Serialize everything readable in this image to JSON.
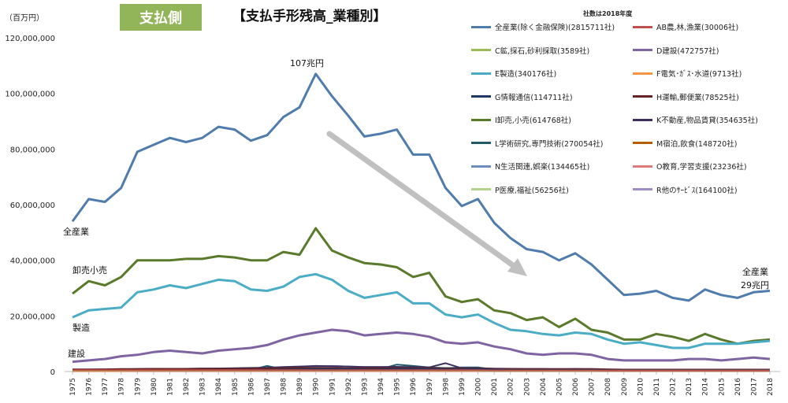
{
  "header": {
    "badge": "支払側",
    "title": "【支払手形残高_業種別】",
    "unit": "（百万円）",
    "legend_note": "社数は2018年度"
  },
  "annotations": {
    "peak": "107兆円",
    "all_industry_left": "全産業",
    "wholesale_left": "卸売小売",
    "manufacturing_left": "製造",
    "construction_left": "建設",
    "all_industry_right_1": "全産業",
    "all_industry_right_2": "29兆円"
  },
  "colors": {
    "all": "#4f7cac",
    "agri": "#c0504d",
    "mining": "#9bbb59",
    "construction": "#8064a2",
    "manufacturing": "#4bacc6",
    "utility": "#f79646",
    "it": "#1f3864",
    "transport": "#632523",
    "wholesale": "#5a7a2b",
    "realestate": "#3f2f5f",
    "research": "#215b6b",
    "hotel": "#b45f06",
    "life": "#6c8ebf",
    "education": "#e07b7b",
    "medical": "#b3d28a",
    "other_service": "#a08cc8",
    "arrow": "#c0c0c0",
    "axis": "#bfbfbf"
  },
  "chart_data": {
    "type": "line",
    "x": [
      "1975",
      "1976",
      "1977",
      "1978",
      "1979",
      "1980",
      "1981",
      "1982",
      "1983",
      "1984",
      "1985",
      "1986",
      "1987",
      "1988",
      "1989",
      "1990",
      "1991",
      "1992",
      "1993",
      "1994",
      "1995",
      "1996",
      "1997",
      "1998",
      "1999",
      "2000",
      "2001",
      "2002",
      "2003",
      "2004",
      "2005",
      "2006",
      "2007",
      "2008",
      "2009",
      "2010",
      "2011",
      "2012",
      "2013",
      "2014",
      "2015",
      "2016",
      "2017",
      "2018"
    ],
    "y_ticks": [
      "0",
      "20,000,000",
      "40,000,000",
      "60,000,000",
      "80,000,000",
      "100,000,000",
      "120,000,000"
    ],
    "ylim": [
      0,
      120000000
    ],
    "series": [
      {
        "name": "全産業(除く金融保険)(2815711社)",
        "color_key": "all",
        "values": [
          54000000,
          62000000,
          61000000,
          66000000,
          79000000,
          81500000,
          84000000,
          82500000,
          84000000,
          88000000,
          87000000,
          83000000,
          85000000,
          91500000,
          95000000,
          107000000,
          99000000,
          92000000,
          84500000,
          85500000,
          87000000,
          78000000,
          78000000,
          66000000,
          59500000,
          62000000,
          53500000,
          48000000,
          44000000,
          43000000,
          40000000,
          42500000,
          38500000,
          33000000,
          27500000,
          28000000,
          29000000,
          26500000,
          25500000,
          29500000,
          27500000,
          26500000,
          28500000,
          29000000
        ]
      },
      {
        "name": "AB農,林,漁業(30006社)",
        "color_key": "agri",
        "values": [
          500000,
          500000,
          500000,
          500000,
          500000,
          500000,
          500000,
          500000,
          500000,
          500000,
          500000,
          500000,
          500000,
          500000,
          500000,
          500000,
          500000,
          500000,
          500000,
          500000,
          500000,
          500000,
          500000,
          500000,
          500000,
          500000,
          400000,
          400000,
          400000,
          400000,
          400000,
          400000,
          400000,
          300000,
          300000,
          300000,
          300000,
          300000,
          300000,
          300000,
          300000,
          300000,
          300000,
          300000
        ]
      },
      {
        "name": "C鉱,採石,砂利採取(3589社)",
        "color_key": "mining",
        "values": [
          300000,
          300000,
          300000,
          300000,
          300000,
          300000,
          300000,
          300000,
          300000,
          300000,
          300000,
          300000,
          300000,
          300000,
          300000,
          300000,
          300000,
          300000,
          300000,
          300000,
          300000,
          300000,
          300000,
          300000,
          300000,
          300000,
          200000,
          200000,
          200000,
          200000,
          200000,
          200000,
          200000,
          200000,
          200000,
          200000,
          200000,
          200000,
          200000,
          200000,
          200000,
          200000,
          200000,
          200000
        ]
      },
      {
        "name": "D建設(472757社)",
        "color_key": "construction",
        "values": [
          3500000,
          4000000,
          4500000,
          5500000,
          6000000,
          7000000,
          7500000,
          7000000,
          6500000,
          7500000,
          8000000,
          8500000,
          9500000,
          11500000,
          13000000,
          14000000,
          15000000,
          14500000,
          13000000,
          13500000,
          14000000,
          13500000,
          12500000,
          10500000,
          10000000,
          10500000,
          9000000,
          8000000,
          6500000,
          6000000,
          6500000,
          6500000,
          6000000,
          4500000,
          4000000,
          4000000,
          4000000,
          4000000,
          4500000,
          4500000,
          4000000,
          4500000,
          5000000,
          4500000
        ]
      },
      {
        "name": "E製造(340176社)",
        "color_key": "manufacturing",
        "values": [
          19500000,
          22000000,
          22500000,
          23000000,
          28500000,
          29500000,
          31000000,
          30000000,
          31500000,
          33000000,
          32500000,
          29500000,
          29000000,
          30500000,
          34000000,
          35000000,
          33000000,
          29000000,
          26500000,
          27500000,
          28500000,
          24500000,
          24500000,
          20500000,
          19500000,
          20500000,
          17500000,
          15000000,
          14500000,
          13500000,
          13000000,
          14000000,
          13500000,
          11500000,
          10000000,
          10500000,
          9500000,
          8500000,
          8500000,
          10000000,
          10000000,
          10000000,
          10500000,
          11000000
        ]
      },
      {
        "name": "F電気･ｶﾞｽ･水道(9713社)",
        "color_key": "utility",
        "values": [
          200000,
          200000,
          200000,
          200000,
          300000,
          300000,
          300000,
          300000,
          300000,
          300000,
          300000,
          300000,
          300000,
          300000,
          300000,
          300000,
          300000,
          300000,
          300000,
          300000,
          300000,
          300000,
          300000,
          300000,
          300000,
          300000,
          300000,
          300000,
          300000,
          300000,
          300000,
          300000,
          300000,
          300000,
          300000,
          300000,
          300000,
          300000,
          300000,
          300000,
          300000,
          300000,
          300000,
          300000
        ]
      },
      {
        "name": "G情報通信(114711社)",
        "color_key": "it",
        "values": [
          300000,
          300000,
          300000,
          300000,
          400000,
          400000,
          400000,
          400000,
          400000,
          500000,
          500000,
          500000,
          600000,
          700000,
          800000,
          900000,
          900000,
          900000,
          800000,
          800000,
          900000,
          900000,
          900000,
          800000,
          800000,
          900000,
          700000,
          600000,
          600000,
          600000,
          600000,
          600000,
          600000,
          500000,
          500000,
          500000,
          500000,
          500000,
          500000,
          500000,
          500000,
          500000,
          500000,
          500000
        ]
      },
      {
        "name": "H運輸,郵便業(78525社)",
        "color_key": "transport",
        "values": [
          800000,
          800000,
          800000,
          900000,
          900000,
          1000000,
          1000000,
          1000000,
          1000000,
          1000000,
          1000000,
          1000000,
          1100000,
          1200000,
          1300000,
          1300000,
          1300000,
          1200000,
          1200000,
          1200000,
          1200000,
          1200000,
          1200000,
          1100000,
          1100000,
          1100000,
          1000000,
          900000,
          900000,
          900000,
          900000,
          900000,
          900000,
          800000,
          700000,
          700000,
          700000,
          700000,
          700000,
          700000,
          700000,
          700000,
          700000,
          700000
        ]
      },
      {
        "name": "I卸売,小売(614768社)",
        "color_key": "wholesale",
        "values": [
          28000000,
          32500000,
          31000000,
          34000000,
          40000000,
          40000000,
          40000000,
          40500000,
          40500000,
          41500000,
          41000000,
          40000000,
          40000000,
          43000000,
          42000000,
          51500000,
          43500000,
          41000000,
          39000000,
          38500000,
          37500000,
          34000000,
          35500000,
          27000000,
          25000000,
          26000000,
          22000000,
          21000000,
          18500000,
          19500000,
          16000000,
          19000000,
          15000000,
          14000000,
          11500000,
          11500000,
          13500000,
          12500000,
          11000000,
          13500000,
          11500000,
          10000000,
          11000000,
          11500000
        ]
      },
      {
        "name": "K不動産,物品賃貸(354635社)",
        "color_key": "realestate",
        "values": [
          700000,
          700000,
          800000,
          800000,
          900000,
          1000000,
          1000000,
          1000000,
          1100000,
          1100000,
          1200000,
          1300000,
          1400000,
          1600000,
          1800000,
          2000000,
          1900000,
          1800000,
          1600000,
          1600000,
          1700000,
          1600000,
          1500000,
          3000000,
          1200000,
          1200000,
          1000000,
          1000000,
          900000,
          900000,
          800000,
          900000,
          800000,
          700000,
          700000,
          700000,
          700000,
          700000,
          600000,
          600000,
          600000,
          600000,
          600000,
          600000
        ]
      },
      {
        "name": "L学術研究,専門技術(270054社)",
        "color_key": "research",
        "values": [
          300000,
          300000,
          300000,
          400000,
          400000,
          400000,
          500000,
          500000,
          500000,
          500000,
          600000,
          600000,
          2000000,
          800000,
          900000,
          1000000,
          1000000,
          1000000,
          900000,
          900000,
          2500000,
          2000000,
          1500000,
          1200000,
          1500000,
          1500000,
          700000,
          700000,
          600000,
          600000,
          600000,
          600000,
          600000,
          500000,
          500000,
          500000,
          500000,
          500000,
          500000,
          500000,
          500000,
          500000,
          500000,
          500000
        ]
      },
      {
        "name": "M宿泊,飲食(148720社)",
        "color_key": "hotel",
        "values": [
          300000,
          300000,
          300000,
          300000,
          400000,
          400000,
          400000,
          400000,
          400000,
          400000,
          400000,
          400000,
          500000,
          500000,
          500000,
          600000,
          600000,
          600000,
          500000,
          500000,
          500000,
          500000,
          500000,
          400000,
          400000,
          400000,
          400000,
          400000,
          300000,
          300000,
          300000,
          300000,
          300000,
          300000,
          300000,
          300000,
          300000,
          300000,
          300000,
          300000,
          300000,
          300000,
          300000,
          300000
        ]
      },
      {
        "name": "N生活関連,娯楽(134465社)",
        "color_key": "life",
        "values": [
          400000,
          400000,
          500000,
          500000,
          600000,
          600000,
          700000,
          700000,
          700000,
          800000,
          800000,
          900000,
          1000000,
          1200000,
          1500000,
          1800000,
          2000000,
          1800000,
          1500000,
          1400000,
          1300000,
          1200000,
          1100000,
          1000000,
          900000,
          900000,
          800000,
          700000,
          700000,
          600000,
          600000,
          600000,
          600000,
          500000,
          500000,
          500000,
          500000,
          500000,
          500000,
          500000,
          500000,
          500000,
          500000,
          500000
        ]
      },
      {
        "name": "O教育,学習支援(23236社)",
        "color_key": "education",
        "values": [
          100000,
          100000,
          100000,
          100000,
          100000,
          100000,
          100000,
          100000,
          100000,
          100000,
          100000,
          100000,
          100000,
          100000,
          100000,
          100000,
          100000,
          100000,
          100000,
          100000,
          100000,
          100000,
          100000,
          100000,
          100000,
          100000,
          100000,
          100000,
          100000,
          100000,
          100000,
          100000,
          100000,
          100000,
          100000,
          100000,
          100000,
          100000,
          100000,
          100000,
          100000,
          100000,
          100000,
          100000
        ]
      },
      {
        "name": "P医療,福祉(56256社)",
        "color_key": "medical",
        "values": [
          100000,
          100000,
          100000,
          100000,
          100000,
          100000,
          100000,
          100000,
          100000,
          100000,
          100000,
          100000,
          200000,
          200000,
          200000,
          200000,
          200000,
          200000,
          200000,
          200000,
          200000,
          200000,
          200000,
          200000,
          200000,
          200000,
          200000,
          200000,
          200000,
          200000,
          200000,
          200000,
          200000,
          200000,
          200000,
          200000,
          200000,
          200000,
          200000,
          200000,
          200000,
          200000,
          200000,
          200000
        ]
      },
      {
        "name": "R他のｻｰﾋﾞｽ(164100社)",
        "color_key": "other_service",
        "values": [
          600000,
          600000,
          700000,
          700000,
          800000,
          900000,
          900000,
          1000000,
          1000000,
          1100000,
          1100000,
          1200000,
          1300000,
          1500000,
          1700000,
          1900000,
          1900000,
          1800000,
          1600000,
          1600000,
          1600000,
          1500000,
          1500000,
          1300000,
          1200000,
          1200000,
          1100000,
          1000000,
          900000,
          900000,
          900000,
          900000,
          900000,
          800000,
          700000,
          700000,
          700000,
          700000,
          700000,
          700000,
          700000,
          700000,
          700000,
          700000
        ]
      }
    ]
  }
}
